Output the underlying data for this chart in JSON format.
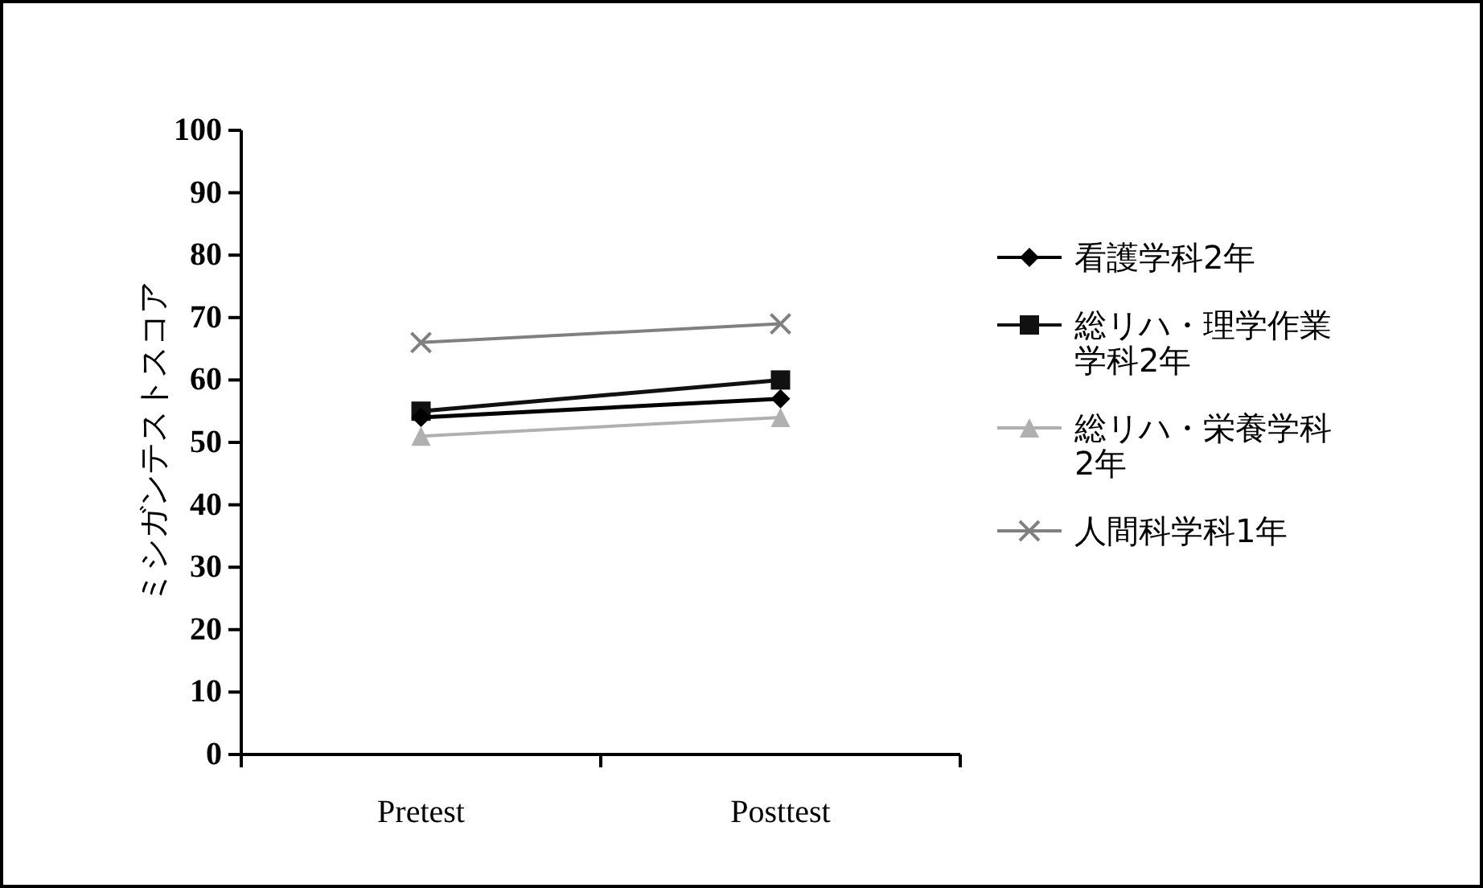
{
  "chart_data": {
    "type": "line",
    "ylabel": "ミシガンテストスコア",
    "categories": [
      "Pretest",
      "Posttest"
    ],
    "series": [
      {
        "name": "看護学科2年",
        "color": "#000000",
        "marker": "diamond",
        "values": [
          54,
          57
        ]
      },
      {
        "name": "総リハ・理学作業学科2年",
        "color": "#111111",
        "marker": "square",
        "values": [
          55,
          60
        ]
      },
      {
        "name": "総リハ・栄養学科2年",
        "color": "#b0b0b0",
        "marker": "triangle",
        "values": [
          51,
          54
        ]
      },
      {
        "name": "人間科学科1年",
        "color": "#808080",
        "marker": "cross",
        "values": [
          66,
          69
        ]
      }
    ],
    "ylim": [
      0,
      100
    ],
    "yticks": [
      0,
      10,
      20,
      30,
      40,
      50,
      60,
      70,
      80,
      90,
      100
    ],
    "grid": false,
    "legend": "right"
  }
}
